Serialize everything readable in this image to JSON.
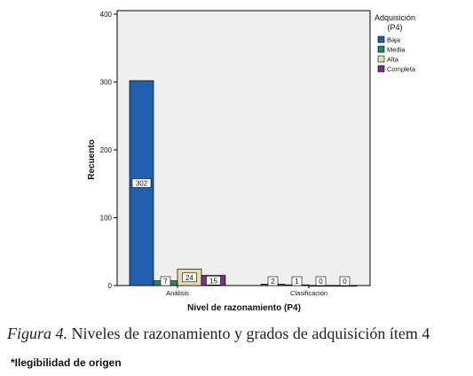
{
  "chart_data": {
    "type": "bar",
    "ylabel": "Recuento",
    "xlabel": "Nivel de razonamiento (P4)",
    "ylim": [
      0,
      400
    ],
    "yticks": [
      0,
      100,
      200,
      300,
      400
    ],
    "categories": [
      "Análisis",
      "Clasificación"
    ],
    "legend": {
      "title_line1": "Adquisición",
      "title_line2": "(P4)",
      "position": "right"
    },
    "series": [
      {
        "name": "Baja",
        "color": "#1f5fae",
        "values": [
          302,
          2
        ]
      },
      {
        "name": "Media",
        "color": "#1f8a5a",
        "values": [
          7,
          1
        ]
      },
      {
        "name": "Alta",
        "color": "#e8dcae",
        "values": [
          24,
          0
        ]
      },
      {
        "name": "Completa",
        "color": "#7b2e8c",
        "values": [
          15,
          0
        ]
      }
    ],
    "data_labels": [
      [
        "302",
        "7",
        "24",
        "15"
      ],
      [
        "2",
        "1",
        "0",
        "0"
      ]
    ],
    "grid": false,
    "plot_background": "#efefef"
  },
  "caption": {
    "figure_label": "Figura 4.",
    "text": " Niveles de razonamiento y grados de adquisición ítem 4"
  },
  "note": "*Ilegibilidad de origen"
}
